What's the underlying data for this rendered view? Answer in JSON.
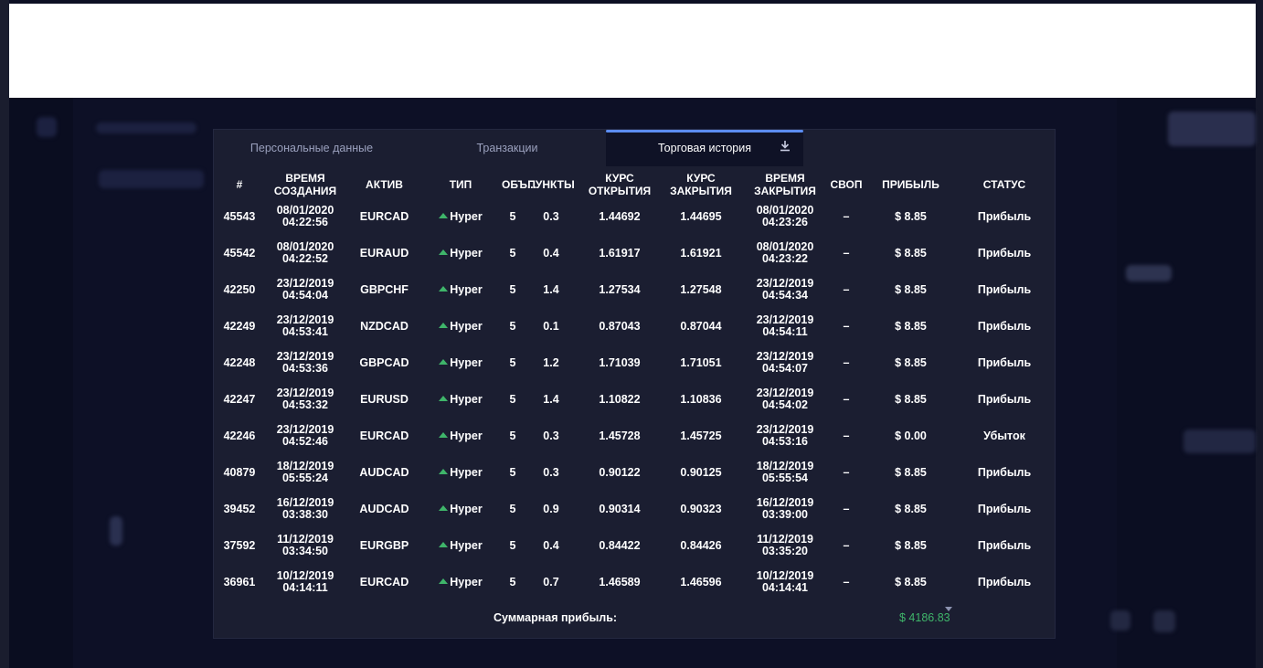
{
  "tabs": [
    {
      "label": "Персональные данные",
      "active": false
    },
    {
      "label": "Транзакции",
      "active": false
    },
    {
      "label": "Торговая история",
      "active": true
    }
  ],
  "download_icon": "download-icon",
  "columns": [
    "#",
    "ВРЕМЯ СОЗДАНИЯ",
    "АКТИВ",
    "ТИП",
    "ОБЪ...",
    "ПУНКТЫ",
    "КУРС ОТКРЫТИЯ",
    "КУРС ЗАКРЫТИЯ",
    "ВРЕМЯ ЗАКРЫТИЯ",
    "СВОП",
    "ПРИБЫЛЬ",
    "СТАТУС"
  ],
  "rows": [
    {
      "id": "45543",
      "created_date": "08/01/2020",
      "created_time": "04:22:56",
      "asset": "EURCAD",
      "type": "Hyper",
      "volume": "5",
      "points": "0.3",
      "points_sign": "pos",
      "open": "1.44692",
      "close": "1.44695",
      "closed_date": "08/01/2020",
      "closed_time": "04:23:26",
      "swap": "–",
      "profit": "$ 8.85",
      "status": "Прибыль",
      "result": "pos"
    },
    {
      "id": "45542",
      "created_date": "08/01/2020",
      "created_time": "04:22:52",
      "asset": "EURAUD",
      "type": "Hyper",
      "volume": "5",
      "points": "0.4",
      "points_sign": "pos",
      "open": "1.61917",
      "close": "1.61921",
      "closed_date": "08/01/2020",
      "closed_time": "04:23:22",
      "swap": "–",
      "profit": "$ 8.85",
      "status": "Прибыль",
      "result": "pos"
    },
    {
      "id": "42250",
      "created_date": "23/12/2019",
      "created_time": "04:54:04",
      "asset": "GBPCHF",
      "type": "Hyper",
      "volume": "5",
      "points": "1.4",
      "points_sign": "pos",
      "open": "1.27534",
      "close": "1.27548",
      "closed_date": "23/12/2019",
      "closed_time": "04:54:34",
      "swap": "–",
      "profit": "$ 8.85",
      "status": "Прибыль",
      "result": "pos"
    },
    {
      "id": "42249",
      "created_date": "23/12/2019",
      "created_time": "04:53:41",
      "asset": "NZDCAD",
      "type": "Hyper",
      "volume": "5",
      "points": "0.1",
      "points_sign": "pos",
      "open": "0.87043",
      "close": "0.87044",
      "closed_date": "23/12/2019",
      "closed_time": "04:54:11",
      "swap": "–",
      "profit": "$ 8.85",
      "status": "Прибыль",
      "result": "pos"
    },
    {
      "id": "42248",
      "created_date": "23/12/2019",
      "created_time": "04:53:36",
      "asset": "GBPCAD",
      "type": "Hyper",
      "volume": "5",
      "points": "1.2",
      "points_sign": "pos",
      "open": "1.71039",
      "close": "1.71051",
      "closed_date": "23/12/2019",
      "closed_time": "04:54:07",
      "swap": "–",
      "profit": "$ 8.85",
      "status": "Прибыль",
      "result": "pos"
    },
    {
      "id": "42247",
      "created_date": "23/12/2019",
      "created_time": "04:53:32",
      "asset": "EURUSD",
      "type": "Hyper",
      "volume": "5",
      "points": "1.4",
      "points_sign": "pos",
      "open": "1.10822",
      "close": "1.10836",
      "closed_date": "23/12/2019",
      "closed_time": "04:54:02",
      "swap": "–",
      "profit": "$ 8.85",
      "status": "Прибыль",
      "result": "pos"
    },
    {
      "id": "42246",
      "created_date": "23/12/2019",
      "created_time": "04:52:46",
      "asset": "EURCAD",
      "type": "Hyper",
      "volume": "5",
      "points": "0.3",
      "points_sign": "neg",
      "open": "1.45728",
      "close": "1.45725",
      "closed_date": "23/12/2019",
      "closed_time": "04:53:16",
      "swap": "–",
      "profit": "$ 0.00",
      "status": "Убыток",
      "result": "neg"
    },
    {
      "id": "40879",
      "created_date": "18/12/2019",
      "created_time": "05:55:24",
      "asset": "AUDCAD",
      "type": "Hyper",
      "volume": "5",
      "points": "0.3",
      "points_sign": "pos",
      "open": "0.90122",
      "close": "0.90125",
      "closed_date": "18/12/2019",
      "closed_time": "05:55:54",
      "swap": "–",
      "profit": "$ 8.85",
      "status": "Прибыль",
      "result": "pos"
    },
    {
      "id": "39452",
      "created_date": "16/12/2019",
      "created_time": "03:38:30",
      "asset": "AUDCAD",
      "type": "Hyper",
      "volume": "5",
      "points": "0.9",
      "points_sign": "pos",
      "open": "0.90314",
      "close": "0.90323",
      "closed_date": "16/12/2019",
      "closed_time": "03:39:00",
      "swap": "–",
      "profit": "$ 8.85",
      "status": "Прибыль",
      "result": "pos"
    },
    {
      "id": "37592",
      "created_date": "11/12/2019",
      "created_time": "03:34:50",
      "asset": "EURGBP",
      "type": "Hyper",
      "volume": "5",
      "points": "0.4",
      "points_sign": "pos",
      "open": "0.84422",
      "close": "0.84426",
      "closed_date": "11/12/2019",
      "closed_time": "03:35:20",
      "swap": "–",
      "profit": "$ 8.85",
      "status": "Прибыль",
      "result": "pos"
    },
    {
      "id": "36961",
      "created_date": "10/12/2019",
      "created_time": "04:14:11",
      "asset": "EURCAD",
      "type": "Hyper",
      "volume": "5",
      "points": "0.7",
      "points_sign": "pos",
      "open": "1.46589",
      "close": "1.46596",
      "closed_date": "10/12/2019",
      "closed_time": "04:14:41",
      "swap": "–",
      "profit": "$ 8.85",
      "status": "Прибыль",
      "result": "pos"
    }
  ],
  "footer": {
    "label": "Суммарная прибыль:",
    "total": "$ 4186.83"
  },
  "colors": {
    "positive": "#3fb56a",
    "negative": "#e0483f",
    "accent": "#5b8cf0",
    "dialog_bg": "#1b1e31"
  }
}
